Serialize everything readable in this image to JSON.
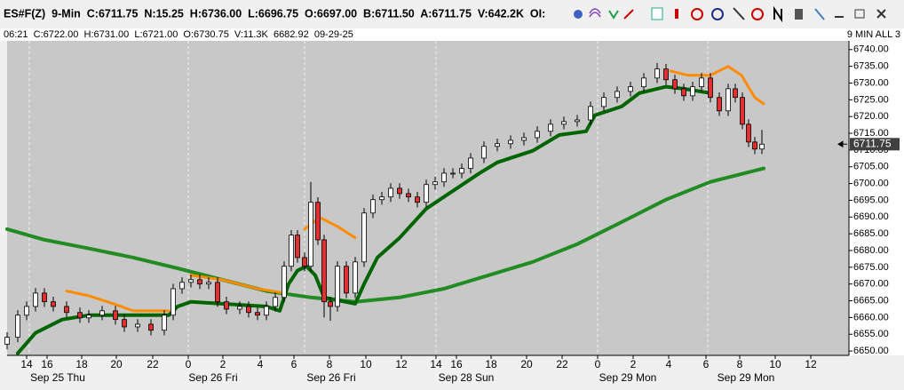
{
  "chart_data": {
    "type": "candlestick",
    "title": "ES#F(Z)  9-Min  C:6711.75  N:15.25  H:6736.00  L:6696.75  O:6697.00  B:6711.50  A:6711.75  V:642.2K  OI:",
    "subtitle": "06:21  C:6722.00  H:6731.00  L:6721.00  O:6730.75  V:11.3K  6682.92  09-29-25",
    "annotation": "9 MIN ALL 3",
    "xlim": [
      0,
      237
    ],
    "ylim": [
      6648.7,
      6742.6
    ],
    "yticks": [
      {
        "value": 6650,
        "label": "6650.00"
      },
      {
        "value": 6655,
        "label": "6655.00"
      },
      {
        "value": 6660,
        "label": "6660.00"
      },
      {
        "value": 6665,
        "label": "6665.00"
      },
      {
        "value": 6670,
        "label": "6670.00"
      },
      {
        "value": 6675,
        "label": "6675.00"
      },
      {
        "value": 6680,
        "label": "6680.00"
      },
      {
        "value": 6685,
        "label": "6685.00"
      },
      {
        "value": 6690,
        "label": "6690.00"
      },
      {
        "value": 6695,
        "label": "6695.00"
      },
      {
        "value": 6700,
        "label": "6700.00"
      },
      {
        "value": 6705,
        "label": "6705.00"
      },
      {
        "value": 6710,
        "label": "6710.00"
      },
      {
        "value": 6715,
        "label": "6715.00"
      },
      {
        "value": 6720,
        "label": "6720.00"
      },
      {
        "value": 6725,
        "label": "6725.00"
      },
      {
        "value": 6730,
        "label": "6730.00"
      },
      {
        "value": 6735,
        "label": "6735.00"
      },
      {
        "value": 6740,
        "label": "6740.00"
      }
    ],
    "xticks": [
      {
        "value": 5.5,
        "label": "14"
      },
      {
        "value": 11.25,
        "label": "16"
      },
      {
        "value": 21,
        "label": "18"
      },
      {
        "value": 30.75,
        "label": "20"
      },
      {
        "value": 41,
        "label": "22"
      },
      {
        "value": 51,
        "label": "0"
      },
      {
        "value": 60.75,
        "label": "2"
      },
      {
        "value": 71.25,
        "label": "4"
      },
      {
        "value": 80.75,
        "label": "6"
      },
      {
        "value": 90.75,
        "label": "8"
      },
      {
        "value": 101,
        "label": "10"
      },
      {
        "value": 111,
        "label": "12"
      },
      {
        "value": 120.75,
        "label": "14"
      },
      {
        "value": 126.5,
        "label": "16"
      },
      {
        "value": 136.25,
        "label": "18"
      },
      {
        "value": 146.25,
        "label": "20"
      },
      {
        "value": 156.25,
        "label": "22"
      },
      {
        "value": 166.25,
        "label": "0"
      },
      {
        "value": 176.25,
        "label": "2"
      },
      {
        "value": 186.25,
        "label": "4"
      },
      {
        "value": 196.75,
        "label": "6"
      },
      {
        "value": 206.25,
        "label": "8"
      },
      {
        "value": 216.25,
        "label": "10"
      },
      {
        "value": 226.25,
        "label": "12"
      }
    ],
    "date_labels": [
      {
        "value": 14.25,
        "label": "Sep 25 Thu"
      },
      {
        "value": 58,
        "label": "Sep 26 Fri"
      },
      {
        "value": 91.25,
        "label": "Sep 26 Fri"
      },
      {
        "value": 129.25,
        "label": "Sep 28 Sun"
      },
      {
        "value": 174.75,
        "label": "Sep 29 Mon"
      },
      {
        "value": 208,
        "label": "Sep 29 Mon"
      }
    ],
    "session_breaks": [
      6.25,
      51,
      83.75,
      120.75,
      166.25,
      197.25
    ],
    "last_price": {
      "value": 6711.75,
      "label": "6711.75"
    },
    "candles": {
      "up_color": "#ffffff",
      "down_color": "#e03030",
      "x": [
        0,
        3,
        5.5,
        8,
        10.5,
        13,
        16.75,
        20.5,
        23,
        26.75,
        30.5,
        33,
        36.75,
        40.5,
        44.25,
        46.75,
        49.25,
        51.75,
        54.25,
        56.75,
        59.25,
        61.75,
        65.5,
        68,
        70.5,
        73,
        75.5,
        78,
        80,
        81.75,
        83.75,
        85.5,
        87.5,
        89.25,
        91,
        93,
        95.5,
        98,
        100.5,
        103,
        105.5,
        108,
        110.5,
        113,
        115.5,
        118,
        120.5,
        123,
        125.5,
        128,
        130.5,
        134.25,
        138,
        141.75,
        145.5,
        149.25,
        153,
        156.75,
        160.5,
        164.25,
        168,
        171.75,
        175.5,
        179.25,
        183,
        185.5,
        188,
        190.5,
        193,
        195.5,
        198,
        200.5,
        203,
        205,
        207,
        208.75,
        210.5,
        212.5
      ],
      "open": [
        6652.0,
        6654.1,
        6660.7,
        6663.3,
        6667.3,
        6664.7,
        6663.3,
        6661.5,
        6659.9,
        6660.7,
        6662.0,
        6659.4,
        6657.2,
        6658.0,
        6656.2,
        6660.7,
        6668.6,
        6670.5,
        6671.3,
        6670.0,
        6670.5,
        6664.7,
        6662.5,
        6663.3,
        6661.5,
        6660.7,
        6663.3,
        6666.0,
        6675.3,
        6684.6,
        6677.9,
        6675.3,
        6694.4,
        6683.2,
        6664.7,
        6663.3,
        6675.3,
        6667.3,
        6676.6,
        6691.2,
        6695.2,
        6696.0,
        6698.6,
        6697.0,
        6696.0,
        6694.4,
        6699.7,
        6700.5,
        6703.1,
        6703.1,
        6704.5,
        6707.6,
        6711.1,
        6711.9,
        6712.9,
        6713.7,
        6715.6,
        6717.7,
        6718.5,
        6719.0,
        6723.0,
        6725.7,
        6727.5,
        6728.9,
        6731.5,
        6734.2,
        6731.0,
        6728.3,
        6726.2,
        6728.9,
        6731.5,
        6725.7,
        6721.7,
        6728.3,
        6725.7,
        6717.7,
        6712.4,
        6710.3
      ],
      "high": [
        6655.6,
        6662.2,
        6664.8,
        6668.8,
        6668.8,
        6666.2,
        6664.8,
        6663.0,
        6662.2,
        6663.5,
        6663.5,
        6660.9,
        6659.5,
        6659.5,
        6662.2,
        6670.1,
        6672.0,
        6672.8,
        6672.8,
        6672.0,
        6672.0,
        6666.2,
        6664.8,
        6664.8,
        6663.0,
        6664.8,
        6667.5,
        6676.8,
        6686.1,
        6686.1,
        6679.4,
        6700.5,
        6695.9,
        6684.7,
        6666.2,
        6676.8,
        6676.8,
        6678.1,
        6692.7,
        6696.7,
        6697.5,
        6700.1,
        6700.1,
        6698.5,
        6697.5,
        6701.2,
        6702.0,
        6704.6,
        6704.6,
        6706.0,
        6709.1,
        6712.6,
        6713.4,
        6714.4,
        6715.2,
        6717.1,
        6719.2,
        6720.0,
        6720.5,
        6724.5,
        6727.2,
        6729.0,
        6730.4,
        6733.0,
        6736.0,
        6735.7,
        6732.5,
        6729.8,
        6730.4,
        6733.0,
        6733.0,
        6727.2,
        6729.8,
        6729.8,
        6727.2,
        6719.2,
        6713.9,
        6716.0
      ],
      "low": [
        6650.5,
        6652.6,
        6659.2,
        6661.8,
        6663.2,
        6661.8,
        6660.0,
        6658.4,
        6658.4,
        6659.2,
        6657.9,
        6655.7,
        6655.7,
        6654.7,
        6654.7,
        6659.2,
        6667.1,
        6669.0,
        6668.5,
        6668.5,
        6663.2,
        6661.0,
        6661.0,
        6660.0,
        6659.2,
        6659.2,
        6661.8,
        6664.5,
        6673.8,
        6676.4,
        6673.8,
        6673.8,
        6681.7,
        6660.0,
        6659.0,
        6661.8,
        6665.8,
        6665.8,
        6675.1,
        6689.7,
        6693.7,
        6694.5,
        6695.5,
        6694.5,
        6692.9,
        6692.9,
        6698.2,
        6699.0,
        6701.6,
        6701.6,
        6703.0,
        6706.1,
        6709.6,
        6710.4,
        6711.4,
        6712.2,
        6714.1,
        6716.2,
        6717.0,
        6717.5,
        6721.5,
        6724.2,
        6726.0,
        6727.4,
        6730.0,
        6729.5,
        6726.8,
        6724.7,
        6724.7,
        6727.4,
        6724.2,
        6720.2,
        6720.2,
        6724.2,
        6716.2,
        6710.9,
        6708.8,
        6708.8
      ],
      "close": [
        6654.1,
        6660.7,
        6663.3,
        6667.3,
        6664.7,
        6663.3,
        6661.5,
        6659.9,
        6660.7,
        6662.0,
        6659.4,
        6657.2,
        6658.0,
        6656.2,
        6660.7,
        6668.6,
        6670.5,
        6671.3,
        6670.0,
        6670.5,
        6664.7,
        6662.5,
        6663.3,
        6661.5,
        6660.7,
        6663.3,
        6666.0,
        6675.3,
        6684.6,
        6677.9,
        6675.3,
        6694.4,
        6683.2,
        6664.7,
        6663.3,
        6675.3,
        6667.3,
        6676.6,
        6691.2,
        6695.2,
        6696.0,
        6698.6,
        6697.0,
        6696.0,
        6694.4,
        6699.7,
        6700.5,
        6703.1,
        6703.1,
        6704.5,
        6707.6,
        6711.1,
        6711.9,
        6712.9,
        6713.7,
        6715.6,
        6717.7,
        6718.5,
        6719.0,
        6723.0,
        6725.7,
        6727.5,
        6728.9,
        6731.5,
        6734.2,
        6731.0,
        6728.3,
        6726.2,
        6728.9,
        6731.5,
        6725.7,
        6721.7,
        6728.3,
        6725.7,
        6717.7,
        6712.4,
        6710.3,
        6711.75
      ]
    },
    "series": [
      {
        "color": "#228b22",
        "width": 4,
        "x": [
          0,
          10.5,
          23,
          35.5,
          48,
          60.5,
          73,
          85.5,
          98,
          110.5,
          123,
          135.5,
          148,
          160.5,
          173,
          185.5,
          198,
          213
        ],
        "values": [
          6686.4,
          6683.2,
          6680.6,
          6677.9,
          6674.7,
          6671.3,
          6667.9,
          6666.0,
          6664.7,
          6666.0,
          6668.6,
          6672.6,
          6676.6,
          6681.9,
          6688.5,
          6695.2,
          6700.5,
          6704.5
        ]
      },
      {
        "color": "#006400",
        "width": 4,
        "x": [
          3,
          8,
          15.5,
          23,
          35.5,
          45.5,
          48,
          51.75,
          60.5,
          73,
          76.75,
          79.25,
          81.75,
          84.25,
          86.75,
          89.25,
          98,
          100.5,
          104.25,
          110.5,
          118,
          125.5,
          133,
          138,
          148,
          155.5,
          163,
          165.5,
          173,
          178,
          185.5,
          190.5,
          198
        ],
        "values": [
          6649.3,
          6655.4,
          6659.4,
          6660.7,
          6660.7,
          6660.7,
          6663.3,
          6664.7,
          6664.1,
          6663.3,
          6662.0,
          6670.0,
          6674.0,
          6675.3,
          6672.6,
          6666.0,
          6664.1,
          6670.0,
          6677.9,
          6683.8,
          6692.5,
          6697.8,
          6703.1,
          6706.3,
          6709.8,
          6714.5,
          6715.6,
          6720.4,
          6723.0,
          6727.0,
          6728.9,
          6728.3,
          6727.0
        ]
      },
      {
        "color": "#ff8c00",
        "width": 3,
        "x": [
          16.75,
          23,
          30.5,
          35.5,
          45.5,
          48,
          51.75,
          60.5,
          70.5,
          78,
          81,
          83.75,
          88,
          93,
          98,
          150,
          186.75,
          191.75,
          198,
          203,
          206.75,
          210.5,
          213
        ],
        "values": [
          6667.9,
          6666.5,
          6663.9,
          6662.0,
          6662.0,
          null,
          6672.6,
          6671.3,
          6668.6,
          6667.3,
          null,
          6686.4,
          6689.9,
          6687.2,
          6683.8,
          null,
          6733.6,
          6732.3,
          6732.3,
          6735.0,
          6732.3,
          6725.7,
          6723.8
        ]
      }
    ]
  }
}
